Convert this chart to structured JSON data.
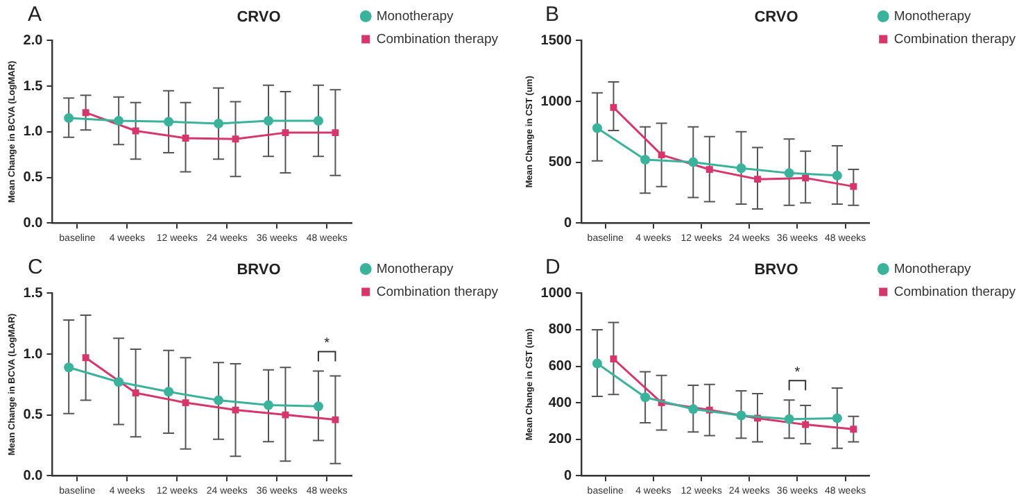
{
  "chart_data": [
    {
      "type": "line",
      "title": "CRVO",
      "ylabel": "Mean Change in BCVA (LogMAR)",
      "categories": [
        "baseline",
        "4 weeks",
        "12 weeks",
        "24 weeks",
        "36 weeks",
        "48 weeks"
      ],
      "ylim": [
        0,
        2
      ],
      "yticks": [
        {
          "value": 0,
          "label": "0.0"
        },
        0.5,
        {
          "value": 1,
          "label": "1.0"
        },
        1.5,
        {
          "value": 2,
          "label": "2.0"
        }
      ],
      "grid": false,
      "legend": "right",
      "annotations": [
        "A"
      ],
      "series": [
        {
          "name": "Monotherapy",
          "color": "#3bb39c",
          "marker": "circle",
          "values": [
            1.15,
            1.12,
            1.11,
            1.09,
            1.12,
            1.12
          ],
          "errors": [
            [
              0.94,
              1.37
            ],
            [
              0.86,
              1.38
            ],
            [
              0.77,
              1.45
            ],
            [
              0.7,
              1.48
            ],
            [
              0.73,
              1.51
            ],
            [
              0.73,
              1.51
            ]
          ]
        },
        {
          "name": "Combination therapy",
          "color": "#d7366b",
          "marker": "square",
          "values": [
            1.21,
            1.01,
            0.93,
            0.92,
            0.99,
            0.99
          ],
          "errors": [
            [
              1.02,
              1.4
            ],
            [
              0.7,
              1.32
            ],
            [
              0.56,
              1.32
            ],
            [
              0.51,
              1.33
            ],
            [
              0.55,
              1.44
            ],
            [
              0.52,
              1.46
            ]
          ]
        }
      ]
    },
    {
      "type": "line",
      "title": "CRVO",
      "ylabel": "Mean Change in CST (um)",
      "categories": [
        "baseline",
        "4 weeks",
        "12 weeks",
        "24 weeks",
        "36 weeks",
        "48 weeks"
      ],
      "ylim": [
        0,
        1500
      ],
      "yticks": [
        0,
        500,
        1000,
        1500
      ],
      "grid": false,
      "legend": "right",
      "annotations": [
        "B"
      ],
      "series": [
        {
          "name": "Monotherapy",
          "color": "#3bb39c",
          "marker": "circle",
          "values": [
            780,
            520,
            500,
            450,
            410,
            390
          ],
          "errors": [
            [
              510,
              1070
            ],
            [
              245,
              790
            ],
            [
              210,
              790
            ],
            [
              155,
              750
            ],
            [
              145,
              690
            ],
            [
              155,
              635
            ]
          ]
        },
        {
          "name": "Combination therapy",
          "color": "#d7366b",
          "marker": "square",
          "values": [
            950,
            560,
            440,
            360,
            370,
            300
          ],
          "errors": [
            [
              760,
              1160
            ],
            [
              300,
              820
            ],
            [
              175,
              710
            ],
            [
              115,
              620
            ],
            [
              165,
              590
            ],
            [
              145,
              440
            ]
          ]
        }
      ]
    },
    {
      "type": "line",
      "title": "BRVO",
      "ylabel": "Mean Change in BCVA (LogMAR)",
      "categories": [
        "baseline",
        "4 weeks",
        "12 weeks",
        "24 weeks",
        "36 weeks",
        "48 weeks"
      ],
      "ylim": [
        0,
        1.5
      ],
      "yticks": [
        {
          "value": 0,
          "label": "0.0"
        },
        0.5,
        {
          "value": 1,
          "label": "1.0"
        },
        1.5
      ],
      "grid": false,
      "legend": "right",
      "annotations": [
        "C",
        "*"
      ],
      "series": [
        {
          "name": "Monotherapy",
          "color": "#3bb39c",
          "marker": "circle",
          "values": [
            0.89,
            0.77,
            0.69,
            0.62,
            0.58,
            0.57
          ],
          "errors": [
            [
              0.51,
              1.28
            ],
            [
              0.42,
              1.13
            ],
            [
              0.35,
              1.03
            ],
            [
              0.3,
              0.93
            ],
            [
              0.28,
              0.87
            ],
            [
              0.29,
              0.86
            ]
          ]
        },
        {
          "name": "Combination therapy",
          "color": "#d7366b",
          "marker": "square",
          "values": [
            0.97,
            0.68,
            0.6,
            0.54,
            0.5,
            0.46
          ],
          "errors": [
            [
              0.62,
              1.32
            ],
            [
              0.32,
              1.04
            ],
            [
              0.22,
              0.97
            ],
            [
              0.16,
              0.92
            ],
            [
              0.12,
              0.89
            ],
            [
              0.1,
              0.82
            ]
          ]
        }
      ]
    },
    {
      "type": "line",
      "title": "BRVO",
      "ylabel": "Mean Change in CST (um)",
      "categories": [
        "baseline",
        "4 weeks",
        "12 weeks",
        "24 weeks",
        "36 weeks",
        "48 weeks"
      ],
      "ylim": [
        0,
        1000
      ],
      "yticks": [
        0,
        200,
        400,
        600,
        800,
        1000
      ],
      "grid": false,
      "legend": "right",
      "annotations": [
        "D",
        "*"
      ],
      "series": [
        {
          "name": "Monotherapy",
          "color": "#3bb39c",
          "marker": "circle",
          "values": [
            615,
            430,
            365,
            330,
            310,
            315
          ],
          "errors": [
            [
              435,
              800
            ],
            [
              290,
              570
            ],
            [
              240,
              495
            ],
            [
              205,
              465
            ],
            [
              205,
              415
            ],
            [
              150,
              480
            ]
          ]
        },
        {
          "name": "Combination therapy",
          "color": "#d7366b",
          "marker": "square",
          "values": [
            640,
            400,
            360,
            315,
            280,
            255
          ],
          "errors": [
            [
              445,
              840
            ],
            [
              250,
              550
            ],
            [
              220,
              500
            ],
            [
              185,
              450
            ],
            [
              175,
              385
            ],
            [
              185,
              325
            ]
          ]
        }
      ]
    }
  ]
}
